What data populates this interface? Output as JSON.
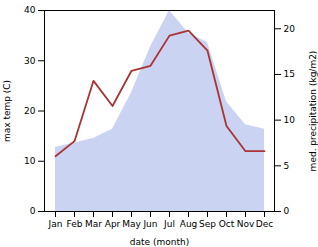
{
  "chart_data": {
    "type": "line",
    "xlabel": "date (month)",
    "ylabel": "max temp (C)",
    "y2label": "med. precipitation (kg/m2)",
    "categories": [
      "Jan",
      "Feb",
      "Mar",
      "Apr",
      "May",
      "Jun",
      "Jul",
      "Aug",
      "Sep",
      "Oct",
      "Nov",
      "Dec"
    ],
    "series": [
      {
        "type": "area",
        "color": "#b8c4ee",
        "axis": "y2",
        "values": [
          7,
          7.5,
          8,
          9,
          13,
          18,
          22,
          19.5,
          18.5,
          12,
          9.5,
          9
        ]
      },
      {
        "type": "line",
        "color": "#aa3333",
        "values": [
          11,
          14,
          26,
          21,
          28,
          29,
          35,
          36,
          32,
          17,
          12,
          12
        ]
      }
    ],
    "ylim": [
      0,
      40
    ],
    "yticks": [
      0,
      10,
      20,
      30,
      40
    ],
    "y2lim": [
      0,
      22
    ],
    "y2ticks": [
      0,
      5,
      10,
      15,
      20
    ],
    "grid": false
  }
}
